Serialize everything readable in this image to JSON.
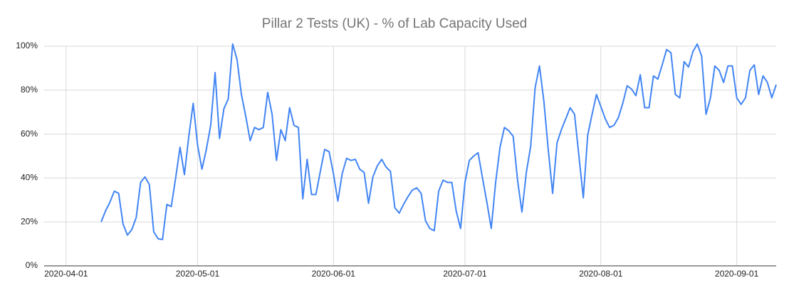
{
  "chart_data": {
    "type": "line",
    "title": "Pillar 2 Tests (UK) - % of Lab Capacity Used",
    "x": [
      "2020-04-09",
      "2020-04-10",
      "2020-04-11",
      "2020-04-12",
      "2020-04-13",
      "2020-04-14",
      "2020-04-15",
      "2020-04-16",
      "2020-04-17",
      "2020-04-18",
      "2020-04-19",
      "2020-04-20",
      "2020-04-21",
      "2020-04-22",
      "2020-04-23",
      "2020-04-24",
      "2020-04-25",
      "2020-04-26",
      "2020-04-27",
      "2020-04-28",
      "2020-04-29",
      "2020-04-30",
      "2020-05-01",
      "2020-05-02",
      "2020-05-03",
      "2020-05-04",
      "2020-05-05",
      "2020-05-06",
      "2020-05-07",
      "2020-05-08",
      "2020-05-09",
      "2020-05-10",
      "2020-05-11",
      "2020-05-12",
      "2020-05-13",
      "2020-05-14",
      "2020-05-15",
      "2020-05-16",
      "2020-05-17",
      "2020-05-18",
      "2020-05-19",
      "2020-05-20",
      "2020-05-21",
      "2020-05-22",
      "2020-05-23",
      "2020-05-24",
      "2020-05-25",
      "2020-05-26",
      "2020-05-27",
      "2020-05-28",
      "2020-05-29",
      "2020-05-30",
      "2020-05-31",
      "2020-06-01",
      "2020-06-02",
      "2020-06-03",
      "2020-06-04",
      "2020-06-05",
      "2020-06-06",
      "2020-06-07",
      "2020-06-08",
      "2020-06-09",
      "2020-06-10",
      "2020-06-11",
      "2020-06-12",
      "2020-06-13",
      "2020-06-14",
      "2020-06-15",
      "2020-06-16",
      "2020-06-17",
      "2020-06-18",
      "2020-06-19",
      "2020-06-20",
      "2020-06-21",
      "2020-06-22",
      "2020-06-23",
      "2020-06-24",
      "2020-06-25",
      "2020-06-26",
      "2020-06-27",
      "2020-06-28",
      "2020-06-29",
      "2020-06-30",
      "2020-07-01",
      "2020-07-02",
      "2020-07-03",
      "2020-07-04",
      "2020-07-05",
      "2020-07-06",
      "2020-07-07",
      "2020-07-08",
      "2020-07-09",
      "2020-07-10",
      "2020-07-11",
      "2020-07-12",
      "2020-07-13",
      "2020-07-14",
      "2020-07-15",
      "2020-07-16",
      "2020-07-17",
      "2020-07-18",
      "2020-07-19",
      "2020-07-20",
      "2020-07-21",
      "2020-07-22",
      "2020-07-23",
      "2020-07-24",
      "2020-07-25",
      "2020-07-26",
      "2020-07-27",
      "2020-07-28",
      "2020-07-29",
      "2020-07-30",
      "2020-07-31",
      "2020-08-01",
      "2020-08-02",
      "2020-08-03",
      "2020-08-04",
      "2020-08-05",
      "2020-08-06",
      "2020-08-07",
      "2020-08-08",
      "2020-08-09",
      "2020-08-10",
      "2020-08-11",
      "2020-08-12",
      "2020-08-13",
      "2020-08-14",
      "2020-08-15",
      "2020-08-16",
      "2020-08-17",
      "2020-08-18",
      "2020-08-19",
      "2020-08-20",
      "2020-08-21",
      "2020-08-22",
      "2020-08-23",
      "2020-08-24",
      "2020-08-25",
      "2020-08-26",
      "2020-08-27",
      "2020-08-28",
      "2020-08-29",
      "2020-08-30",
      "2020-08-31",
      "2020-09-01",
      "2020-09-02",
      "2020-09-03",
      "2020-09-04",
      "2020-09-05",
      "2020-09-06",
      "2020-09-07",
      "2020-09-08",
      "2020-09-09",
      "2020-09-10"
    ],
    "values": [
      20,
      25,
      29,
      34,
      33,
      19,
      14,
      16.5,
      22,
      38,
      40.5,
      37,
      15.5,
      12.3,
      12,
      28,
      27,
      40,
      54,
      41.5,
      59,
      74,
      55,
      44,
      53,
      64,
      88,
      58,
      71.5,
      76,
      101,
      94,
      78,
      68,
      57,
      63,
      62,
      63,
      79,
      69,
      48,
      62,
      57,
      72,
      64,
      63,
      30.5,
      48.5,
      32.5,
      32.5,
      43,
      53,
      52,
      42,
      29.5,
      42,
      49,
      48,
      48.5,
      44,
      42.5,
      28.5,
      40.5,
      45.5,
      48.5,
      45,
      43,
      26.5,
      24,
      28,
      31.5,
      34.5,
      35.5,
      33,
      20.5,
      17,
      16,
      34,
      39,
      38,
      38,
      25,
      17,
      38,
      48,
      50,
      51.5,
      40,
      29,
      17,
      38,
      54,
      63,
      61.5,
      59,
      39,
      24.5,
      42.5,
      54.5,
      81,
      91,
      75,
      53,
      33,
      56,
      62,
      67,
      72,
      69,
      50,
      31,
      59.5,
      69,
      78,
      72.5,
      67,
      63,
      64,
      67.5,
      74,
      82,
      80.5,
      77.5,
      87,
      72,
      72,
      86.5,
      85,
      91.5,
      98.5,
      97,
      78,
      76.5,
      93,
      90.5,
      97.5,
      101,
      95.5,
      69,
      76.5,
      91,
      89,
      83.5,
      91,
      91,
      76.5,
      73.5,
      76.5,
      89,
      91.5,
      78,
      86.5,
      83.5,
      76.5,
      82.5
    ],
    "color": "#4285f4",
    "xlim": [
      "2020-03-27",
      "2020-09-10"
    ],
    "xticks": [
      "2020-04-01",
      "2020-05-01",
      "2020-06-01",
      "2020-07-01",
      "2020-08-01",
      "2020-09-01"
    ],
    "ylim": [
      0,
      100
    ],
    "yticks": [
      {
        "value": 0,
        "label": "0%"
      },
      {
        "value": 20,
        "label": "20%"
      },
      {
        "value": 40,
        "label": "40%"
      },
      {
        "value": 60,
        "label": "60%"
      },
      {
        "value": 80,
        "label": "80%"
      },
      {
        "value": 100,
        "label": "100%"
      }
    ],
    "grid": true
  }
}
